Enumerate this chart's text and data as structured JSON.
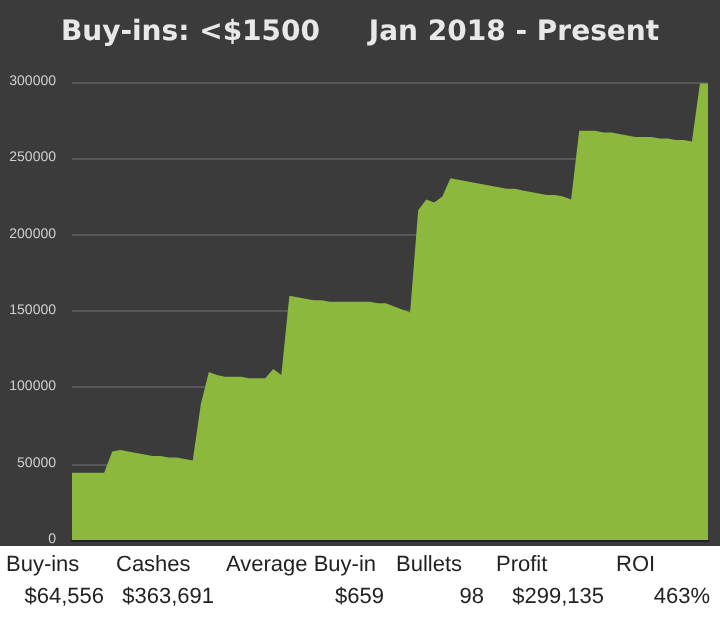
{
  "chart_data": {
    "type": "area",
    "title": "Buy-ins: <$1500     Jan 2018 - Present",
    "categories": [
      null,
      null,
      null,
      null,
      null,
      null,
      null,
      null,
      null,
      null,
      null,
      null,
      null,
      null,
      null,
      null,
      null,
      null,
      null,
      null,
      null,
      null,
      null,
      null,
      null,
      null,
      null,
      null,
      null,
      null,
      null,
      null,
      null,
      null,
      null,
      null,
      null,
      null,
      null,
      null,
      null,
      null,
      null,
      null,
      null,
      null,
      null,
      null,
      null,
      null,
      null,
      null,
      null,
      null,
      null,
      null,
      null,
      null,
      null,
      null,
      null,
      null,
      null,
      null,
      null,
      null,
      null,
      null,
      null,
      null,
      null,
      null,
      null,
      null,
      null,
      null,
      null,
      null,
      null,
      null
    ],
    "values": [
      44000,
      44000,
      44000,
      44000,
      44000,
      58000,
      59000,
      58000,
      57000,
      56000,
      55000,
      55000,
      54000,
      54000,
      53000,
      52000,
      89000,
      110000,
      108000,
      107000,
      107000,
      107000,
      106000,
      106000,
      106000,
      112000,
      108000,
      160000,
      159000,
      158000,
      157000,
      157000,
      156000,
      156000,
      156000,
      156000,
      156000,
      156000,
      155000,
      155000,
      153000,
      151000,
      149000,
      216000,
      223000,
      221000,
      225000,
      237000,
      236000,
      235000,
      234000,
      233000,
      232000,
      231000,
      230000,
      230000,
      229000,
      228000,
      227000,
      226000,
      226000,
      225000,
      223000,
      268000,
      268000,
      268000,
      267000,
      267000,
      266000,
      265000,
      264000,
      264000,
      264000,
      263000,
      263000,
      262000,
      262000,
      261000,
      299000,
      299000
    ],
    "color": "#8cb83e",
    "ylim": [
      0,
      300000
    ],
    "yticks": [
      0,
      50000,
      100000,
      150000,
      200000,
      250000,
      300000
    ],
    "grid": "y",
    "tick_labels": "y",
    "annotations": [
      "Buy-ins",
      "Cashes",
      "Average Buy-in",
      "Bullets",
      "Profit",
      "ROI",
      "$64,556",
      "$363,691",
      "$659",
      "98",
      "$299,135",
      "463%"
    ]
  }
}
